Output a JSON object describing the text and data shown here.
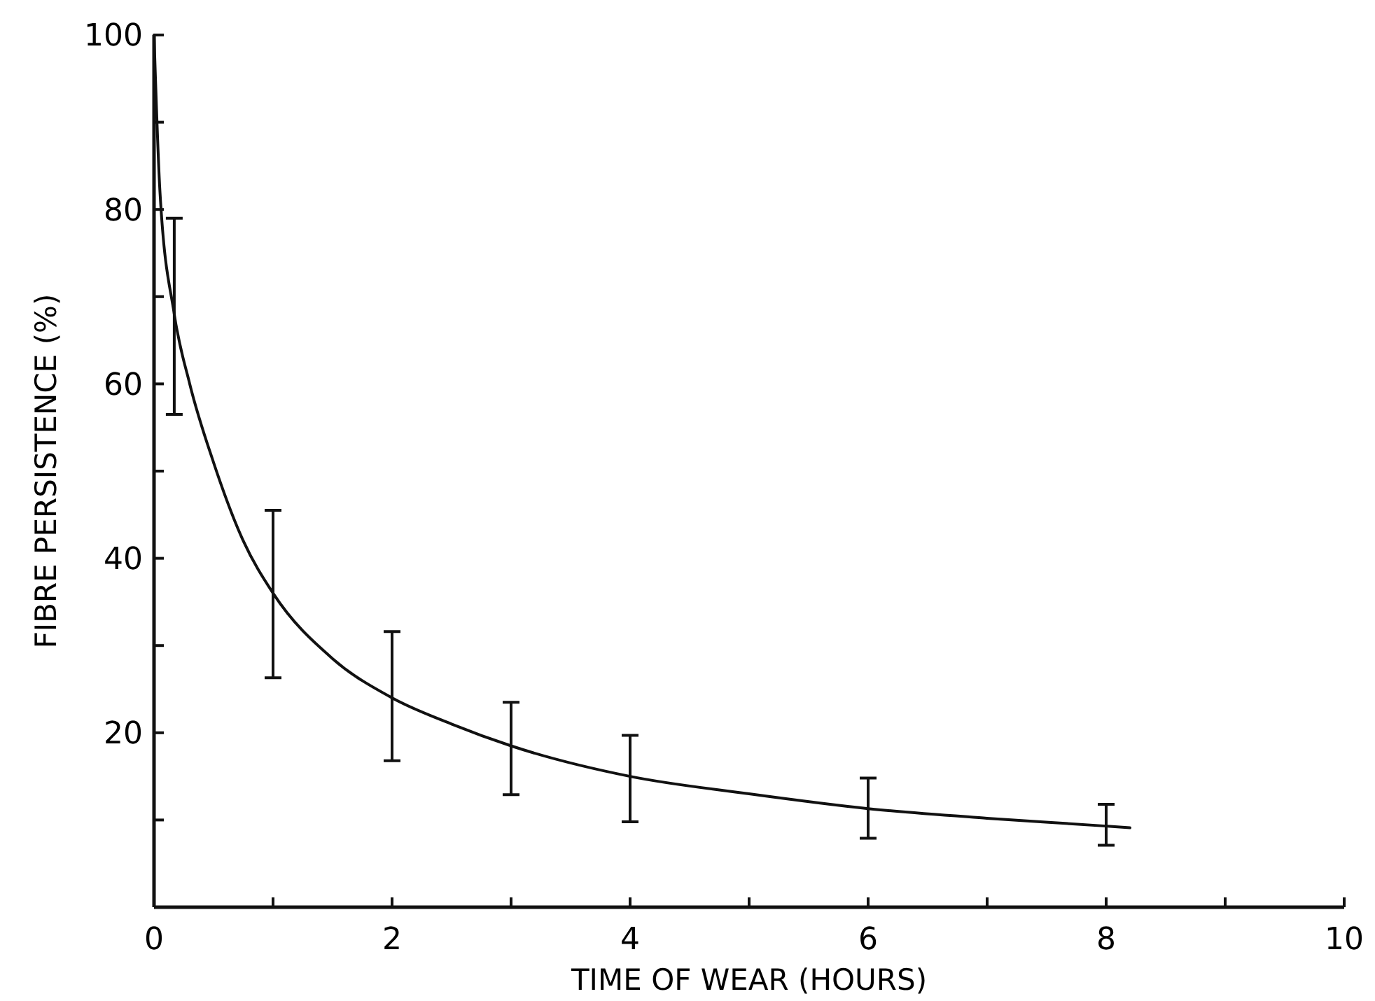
{
  "chart_data": {
    "type": "line",
    "xlabel": "TIME OF WEAR (HOURS)",
    "ylabel": "FIBRE PERSISTENCE (%)",
    "xlim": [
      0,
      10
    ],
    "ylim": [
      0,
      100
    ],
    "xticks": [
      0,
      {
        "value": 1,
        "label": null
      },
      2,
      {
        "value": 3,
        "label": null
      },
      4,
      {
        "value": 5,
        "label": null
      },
      6,
      {
        "value": 7,
        "label": null
      },
      8,
      {
        "value": 9,
        "label": null
      },
      10
    ],
    "yticks": [
      {
        "value": 10,
        "label": null
      },
      20,
      {
        "value": 30,
        "label": null
      },
      40,
      {
        "value": 50,
        "label": null
      },
      60,
      {
        "value": 70,
        "label": null
      },
      80,
      {
        "value": 90,
        "label": null
      },
      100
    ],
    "grid": false,
    "marker": "none",
    "line_style": "solid",
    "series": [
      {
        "color": "#111111",
        "x": [
          0,
          0.05,
          0.17,
          0.3,
          0.5,
          0.75,
          1,
          1.5,
          2,
          2.5,
          3,
          4,
          5,
          6,
          7,
          8,
          8.2
        ],
        "values": [
          100,
          82,
          68,
          60,
          51,
          42,
          36,
          28.5,
          24,
          21,
          18.5,
          15,
          13,
          11.3,
          10.2,
          9.3,
          9.1
        ],
        "errors": [
          null,
          null,
          [
            56.5,
            79
          ],
          null,
          null,
          null,
          [
            26.3,
            45.5
          ],
          null,
          [
            16.8,
            31.6
          ],
          null,
          [
            12.9,
            23.5
          ],
          [
            9.8,
            19.7
          ],
          null,
          [
            7.9,
            14.8
          ],
          null,
          [
            7.1,
            11.8
          ],
          null
        ]
      }
    ]
  }
}
